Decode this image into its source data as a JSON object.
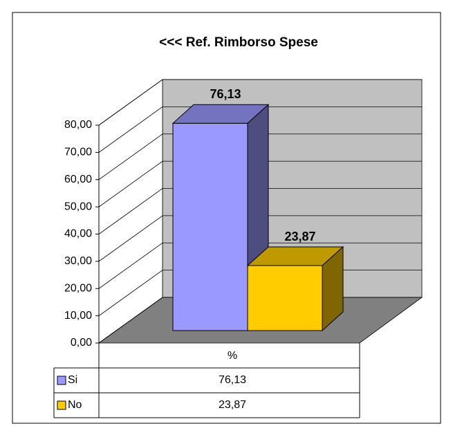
{
  "chart_data": {
    "type": "bar3d",
    "title": "<<<  Ref. Rimborso Spese",
    "categories": [
      "%"
    ],
    "series": [
      {
        "name": "Si",
        "color": "#9999ff",
        "values": [
          76.13
        ],
        "value_labels": [
          "76,13"
        ]
      },
      {
        "name": "No",
        "color": "#ffcc00",
        "values": [
          23.87
        ],
        "value_labels": [
          "23,87"
        ]
      }
    ],
    "ylim": [
      0,
      80
    ],
    "yticks": [
      {
        "value": 0,
        "label": "0,00"
      },
      {
        "value": 10,
        "label": "10,00"
      },
      {
        "value": 20,
        "label": "20,00"
      },
      {
        "value": 30,
        "label": "30,00"
      },
      {
        "value": 40,
        "label": "40,00"
      },
      {
        "value": 50,
        "label": "50,00"
      },
      {
        "value": 60,
        "label": "60,00"
      },
      {
        "value": 70,
        "label": "70,00"
      },
      {
        "value": 80,
        "label": "80,00"
      }
    ],
    "grid": true,
    "data_table": true
  }
}
